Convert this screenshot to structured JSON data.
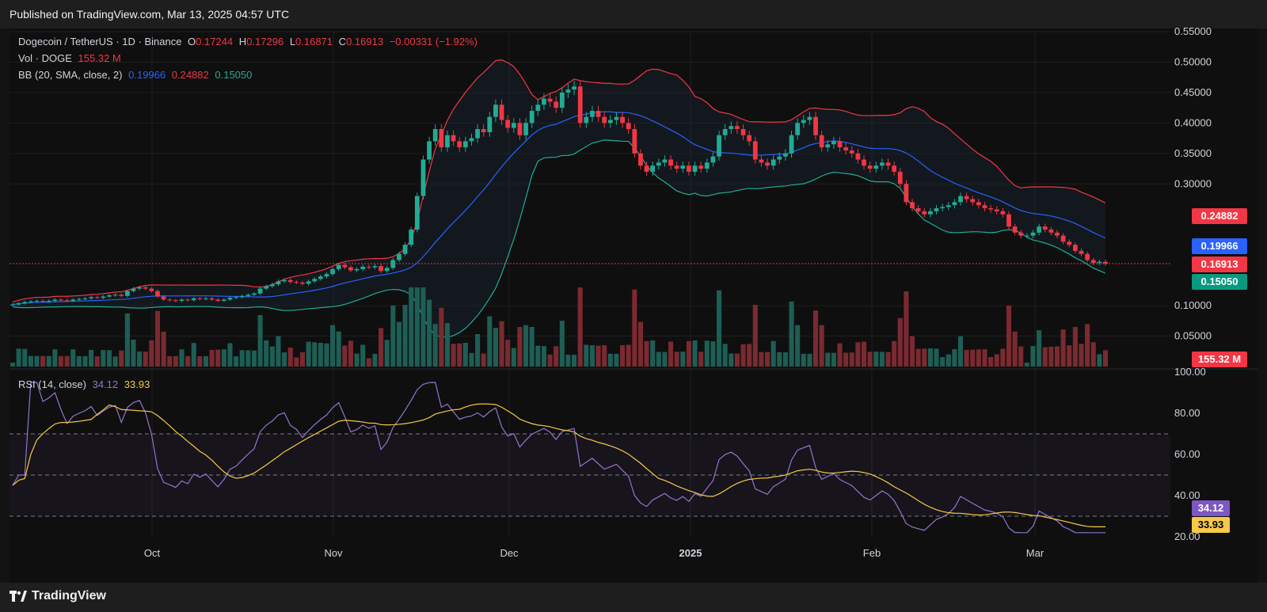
{
  "header": {
    "published": "Published on TradingView.com, Mar 13, 2025 04:57 UTC"
  },
  "legend": {
    "symbol": "Dogecoin / TetherUS · 1D · Binance",
    "o_label": "O",
    "o_value": "0.17244",
    "h_label": "H",
    "h_value": "0.17296",
    "l_label": "L",
    "l_value": "0.16871",
    "c_label": "C",
    "c_value": "0.16913",
    "change": "−0.00331 (−1.92%)",
    "vol_label": "Vol · DOGE",
    "vol_value": "155.32 M",
    "bb_label": "BB (20, SMA, close, 2)",
    "bb_basis": "0.19966",
    "bb_upper": "0.24882",
    "bb_lower": "0.15050",
    "rsi_label": "RSI (14, close)",
    "rsi_value": "34.12",
    "rsi_ma": "33.93"
  },
  "price_boxes": {
    "upper": "0.24882",
    "basis": "0.19966",
    "close": "0.16913",
    "lower": "0.15050",
    "volume": "155.32 M",
    "rsi": "34.12",
    "rsi_ma": "33.93"
  },
  "colors": {
    "up": "#22ab94",
    "down": "#f23645",
    "basis": "#2962ff",
    "rsi": "#9575cd",
    "rsi_ma": "#f7c948"
  },
  "footer": {
    "brand": "TradingView"
  },
  "chart_data": {
    "type": "candlestick",
    "title": "Dogecoin / TetherUS · 1D · Binance",
    "x_labels": [
      "Oct",
      "Nov",
      "Dec",
      "2025",
      "Feb",
      "Mar"
    ],
    "price_axis": {
      "ylim": [
        0.0,
        0.55
      ],
      "ticks": [
        "0.55000",
        "0.50000",
        "0.45000",
        "0.40000",
        "0.35000",
        "0.30000",
        "0.10000",
        "0.05000"
      ]
    },
    "rsi_axis": {
      "ylim": [
        20,
        100
      ],
      "ticks": [
        "100.00",
        "80.00",
        "60.00",
        "40.00",
        "20.00"
      ],
      "bands": [
        30,
        50,
        70
      ]
    },
    "close": [
      0.102,
      0.104,
      0.106,
      0.107,
      0.108,
      0.107,
      0.108,
      0.11,
      0.109,
      0.108,
      0.11,
      0.111,
      0.112,
      0.114,
      0.113,
      0.115,
      0.117,
      0.118,
      0.116,
      0.124,
      0.128,
      0.13,
      0.128,
      0.124,
      0.115,
      0.11,
      0.109,
      0.108,
      0.11,
      0.109,
      0.112,
      0.111,
      0.112,
      0.11,
      0.108,
      0.11,
      0.113,
      0.114,
      0.116,
      0.118,
      0.12,
      0.128,
      0.132,
      0.135,
      0.14,
      0.142,
      0.139,
      0.138,
      0.136,
      0.14,
      0.144,
      0.148,
      0.152,
      0.16,
      0.167,
      0.163,
      0.158,
      0.16,
      0.164,
      0.163,
      0.165,
      0.157,
      0.162,
      0.175,
      0.185,
      0.2,
      0.225,
      0.28,
      0.34,
      0.37,
      0.39,
      0.36,
      0.38,
      0.37,
      0.36,
      0.37,
      0.375,
      0.39,
      0.385,
      0.41,
      0.43,
      0.405,
      0.392,
      0.4,
      0.38,
      0.4,
      0.42,
      0.43,
      0.44,
      0.435,
      0.425,
      0.45,
      0.455,
      0.46,
      0.4,
      0.41,
      0.42,
      0.41,
      0.4,
      0.405,
      0.41,
      0.4,
      0.39,
      0.35,
      0.33,
      0.32,
      0.33,
      0.335,
      0.34,
      0.33,
      0.325,
      0.33,
      0.32,
      0.33,
      0.325,
      0.335,
      0.345,
      0.38,
      0.39,
      0.395,
      0.39,
      0.38,
      0.37,
      0.34,
      0.335,
      0.33,
      0.34,
      0.345,
      0.35,
      0.38,
      0.4,
      0.405,
      0.41,
      0.38,
      0.36,
      0.365,
      0.37,
      0.36,
      0.355,
      0.35,
      0.34,
      0.33,
      0.325,
      0.33,
      0.335,
      0.33,
      0.32,
      0.3,
      0.27,
      0.26,
      0.255,
      0.25,
      0.255,
      0.26,
      0.262,
      0.265,
      0.27,
      0.28,
      0.275,
      0.27,
      0.265,
      0.26,
      0.258,
      0.255,
      0.25,
      0.23,
      0.22,
      0.215,
      0.215,
      0.22,
      0.23,
      0.225,
      0.22,
      0.215,
      0.205,
      0.2,
      0.19,
      0.185,
      0.175,
      0.17,
      0.172,
      0.169
    ],
    "bb_upper": 0.24882,
    "bb_basis": 0.19966,
    "bb_lower": 0.1505,
    "volume_last": "155.32 M",
    "rsi_last": 34.12,
    "rsi_ma_last": 33.93
  }
}
